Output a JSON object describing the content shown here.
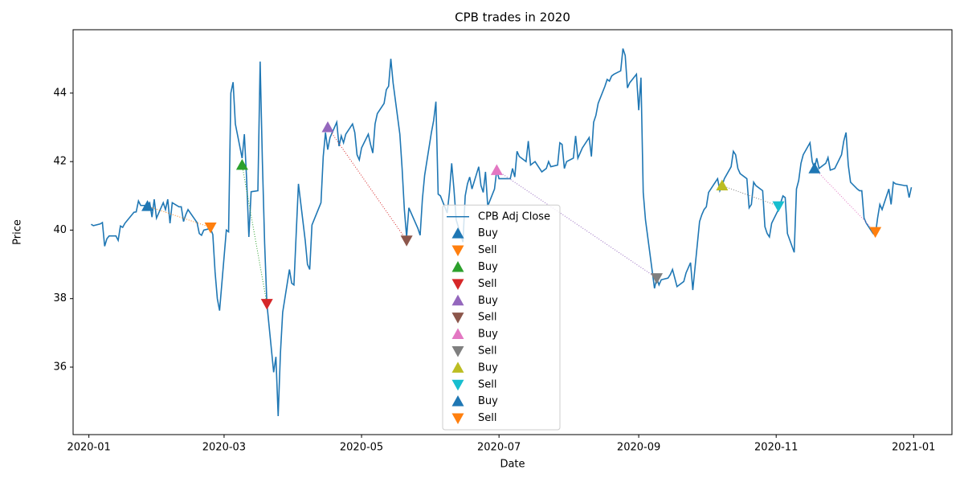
{
  "chart_data": {
    "type": "line",
    "title": "CPB trades in 2020",
    "xlabel": "Date",
    "ylabel": "Price",
    "xlim": [
      "2019-12-25",
      "2021-01-18"
    ],
    "xticks": [
      {
        "value": "2020-01-01",
        "label": "2020-01"
      },
      {
        "value": "2020-03-01",
        "label": "2020-03"
      },
      {
        "value": "2020-05-01",
        "label": "2020-05"
      },
      {
        "value": "2020-07-01",
        "label": "2020-07"
      },
      {
        "value": "2020-09-01",
        "label": "2020-09"
      },
      {
        "value": "2020-11-01",
        "label": "2020-11"
      },
      {
        "value": "2021-01-01",
        "label": "2021-01"
      }
    ],
    "ylim": [
      34.03,
      45.85
    ],
    "yticks": [
      36,
      38,
      40,
      42,
      44
    ],
    "grid": false,
    "legend": "lower center",
    "connector_colors": [
      "#ff7f0e",
      "#2ca02c",
      "#d62728",
      "#9467bd",
      "#7f7f7f",
      "#e377c2"
    ],
    "series": [
      {
        "name": "CPB Adj Close",
        "color": "#1f77b4",
        "marker": "line",
        "x": [
          "2020-01-02",
          "2020-01-03",
          "2020-01-06",
          "2020-01-07",
          "2020-01-08",
          "2020-01-09",
          "2020-01-10",
          "2020-01-13",
          "2020-01-14",
          "2020-01-15",
          "2020-01-16",
          "2020-01-17",
          "2020-01-21",
          "2020-01-22",
          "2020-01-23",
          "2020-01-24",
          "2020-01-27",
          "2020-01-28",
          "2020-01-29",
          "2020-01-30",
          "2020-01-31",
          "2020-02-03",
          "2020-02-04",
          "2020-02-05",
          "2020-02-06",
          "2020-02-07",
          "2020-02-10",
          "2020-02-11",
          "2020-02-12",
          "2020-02-13",
          "2020-02-14",
          "2020-02-18",
          "2020-02-19",
          "2020-02-20",
          "2020-02-21",
          "2020-02-24",
          "2020-02-25",
          "2020-02-26",
          "2020-02-27",
          "2020-02-28",
          "2020-03-02",
          "2020-03-03",
          "2020-03-04",
          "2020-03-05",
          "2020-03-06",
          "2020-03-09",
          "2020-03-10",
          "2020-03-11",
          "2020-03-12",
          "2020-03-13",
          "2020-03-16",
          "2020-03-17",
          "2020-03-18",
          "2020-03-19",
          "2020-03-20",
          "2020-03-23",
          "2020-03-24",
          "2020-03-25",
          "2020-03-26",
          "2020-03-27",
          "2020-03-30",
          "2020-03-31",
          "2020-04-01",
          "2020-04-02",
          "2020-04-03",
          "2020-04-06",
          "2020-04-07",
          "2020-04-08",
          "2020-04-09",
          "2020-04-13",
          "2020-04-14",
          "2020-04-15",
          "2020-04-16",
          "2020-04-17",
          "2020-04-20",
          "2020-04-21",
          "2020-04-22",
          "2020-04-23",
          "2020-04-24",
          "2020-04-27",
          "2020-04-28",
          "2020-04-29",
          "2020-04-30",
          "2020-05-01",
          "2020-05-04",
          "2020-05-05",
          "2020-05-06",
          "2020-05-07",
          "2020-05-08",
          "2020-05-11",
          "2020-05-12",
          "2020-05-13",
          "2020-05-14",
          "2020-05-15",
          "2020-05-18",
          "2020-05-19",
          "2020-05-20",
          "2020-05-21",
          "2020-05-22",
          "2020-05-26",
          "2020-05-27",
          "2020-05-28",
          "2020-05-29",
          "2020-06-01",
          "2020-06-02",
          "2020-06-03",
          "2020-06-04",
          "2020-06-05",
          "2020-06-08",
          "2020-06-09",
          "2020-06-10",
          "2020-06-11",
          "2020-06-12",
          "2020-06-15",
          "2020-06-16",
          "2020-06-17",
          "2020-06-18",
          "2020-06-19",
          "2020-06-22",
          "2020-06-23",
          "2020-06-24",
          "2020-06-25",
          "2020-06-26",
          "2020-06-29",
          "2020-06-30",
          "2020-07-01",
          "2020-07-02",
          "2020-07-06",
          "2020-07-07",
          "2020-07-08",
          "2020-07-09",
          "2020-07-10",
          "2020-07-13",
          "2020-07-14",
          "2020-07-15",
          "2020-07-16",
          "2020-07-17",
          "2020-07-20",
          "2020-07-21",
          "2020-07-22",
          "2020-07-23",
          "2020-07-24",
          "2020-07-27",
          "2020-07-28",
          "2020-07-29",
          "2020-07-30",
          "2020-07-31",
          "2020-08-03",
          "2020-08-04",
          "2020-08-05",
          "2020-08-06",
          "2020-08-07",
          "2020-08-10",
          "2020-08-11",
          "2020-08-12",
          "2020-08-13",
          "2020-08-14",
          "2020-08-17",
          "2020-08-18",
          "2020-08-19",
          "2020-08-20",
          "2020-08-21",
          "2020-08-24",
          "2020-08-25",
          "2020-08-26",
          "2020-08-27",
          "2020-08-28",
          "2020-08-31",
          "2020-09-01",
          "2020-09-02",
          "2020-09-03",
          "2020-09-04",
          "2020-09-08",
          "2020-09-09",
          "2020-09-10",
          "2020-09-11",
          "2020-09-14",
          "2020-09-15",
          "2020-09-16",
          "2020-09-17",
          "2020-09-18",
          "2020-09-21",
          "2020-09-22",
          "2020-09-23",
          "2020-09-24",
          "2020-09-25",
          "2020-09-28",
          "2020-09-29",
          "2020-09-30",
          "2020-10-01",
          "2020-10-02",
          "2020-10-05",
          "2020-10-06",
          "2020-10-07",
          "2020-10-08",
          "2020-10-09",
          "2020-10-12",
          "2020-10-13",
          "2020-10-14",
          "2020-10-15",
          "2020-10-16",
          "2020-10-19",
          "2020-10-20",
          "2020-10-21",
          "2020-10-22",
          "2020-10-23",
          "2020-10-26",
          "2020-10-27",
          "2020-10-28",
          "2020-10-29",
          "2020-10-30",
          "2020-11-02",
          "2020-11-03",
          "2020-11-04",
          "2020-11-05",
          "2020-11-06",
          "2020-11-09",
          "2020-11-10",
          "2020-11-11",
          "2020-11-12",
          "2020-11-13",
          "2020-11-16",
          "2020-11-17",
          "2020-11-18",
          "2020-11-19",
          "2020-11-20",
          "2020-11-23",
          "2020-11-24",
          "2020-11-25",
          "2020-11-27",
          "2020-11-30",
          "2020-12-01",
          "2020-12-02",
          "2020-12-03",
          "2020-12-04",
          "2020-12-07",
          "2020-12-08",
          "2020-12-09",
          "2020-12-10",
          "2020-12-11",
          "2020-12-14",
          "2020-12-15",
          "2020-12-16",
          "2020-12-17",
          "2020-12-18",
          "2020-12-21",
          "2020-12-22",
          "2020-12-23",
          "2020-12-24",
          "2020-12-28",
          "2020-12-29",
          "2020-12-30",
          "2020-12-31"
        ],
        "values": [
          40.17,
          40.13,
          40.18,
          40.22,
          39.53,
          39.75,
          39.83,
          39.83,
          39.7,
          40.12,
          40.08,
          40.2,
          40.52,
          40.53,
          40.85,
          40.72,
          40.72,
          40.8,
          40.38,
          40.9,
          40.35,
          40.8,
          40.6,
          40.9,
          40.2,
          40.8,
          40.68,
          40.68,
          40.25,
          40.45,
          40.6,
          40.22,
          39.9,
          39.85,
          40.0,
          40.05,
          39.87,
          38.78,
          38.0,
          37.65,
          40.0,
          39.95,
          44.0,
          44.32,
          43.1,
          42.1,
          42.8,
          41.5,
          39.8,
          41.12,
          41.15,
          44.92,
          42.0,
          39.6,
          37.85,
          35.85,
          36.3,
          34.57,
          36.4,
          37.6,
          38.85,
          38.45,
          38.4,
          39.9,
          41.35,
          39.7,
          39.0,
          38.85,
          40.15,
          40.8,
          42.15,
          42.85,
          42.35,
          42.7,
          43.15,
          42.45,
          42.75,
          42.55,
          42.8,
          43.1,
          42.85,
          42.2,
          42.05,
          42.4,
          42.8,
          42.5,
          42.25,
          43.1,
          43.4,
          43.7,
          44.1,
          44.2,
          45.0,
          44.3,
          42.8,
          41.8,
          40.6,
          39.8,
          40.65,
          40.05,
          39.85,
          40.9,
          41.6,
          42.85,
          43.2,
          43.75,
          41.05,
          41.0,
          40.5,
          41.1,
          41.95,
          41.2,
          40.3,
          39.65,
          41.0,
          41.35,
          41.55,
          41.2,
          41.85,
          41.3,
          41.1,
          41.7,
          40.7,
          41.2,
          41.75,
          41.5,
          41.5,
          41.5,
          41.8,
          41.55,
          42.3,
          42.15,
          42.0,
          42.6,
          41.9,
          41.95,
          42.0,
          41.7,
          41.75,
          41.8,
          42.0,
          41.85,
          41.9,
          42.55,
          42.5,
          41.8,
          42.0,
          42.1,
          42.75,
          42.1,
          42.25,
          42.4,
          42.7,
          42.15,
          43.15,
          43.35,
          43.7,
          44.2,
          44.4,
          44.35,
          44.5,
          44.55,
          44.65,
          45.3,
          45.1,
          44.15,
          44.3,
          44.55,
          43.5,
          44.45,
          41.1,
          40.3,
          38.3,
          38.6,
          38.4,
          38.55,
          38.6,
          38.7,
          38.85,
          38.6,
          38.35,
          38.5,
          38.75,
          38.9,
          39.05,
          38.25,
          40.25,
          40.45,
          40.6,
          40.68,
          41.1,
          41.4,
          41.5,
          41.15,
          41.3,
          41.5,
          41.85,
          42.3,
          42.2,
          41.8,
          41.65,
          41.5,
          40.65,
          40.75,
          41.4,
          41.3,
          41.15,
          40.1,
          39.9,
          39.8,
          40.2,
          40.6,
          40.8,
          41.0,
          40.95,
          39.9,
          39.35,
          41.2,
          41.45,
          41.95,
          42.2,
          42.55,
          42.0,
          41.8,
          42.1,
          41.8,
          41.95,
          42.12,
          41.75,
          41.8,
          42.2,
          42.6,
          42.85,
          41.9,
          41.4,
          41.2,
          41.15,
          41.15,
          40.35,
          40.2,
          39.9,
          39.85,
          40.35,
          40.75,
          40.6,
          41.2,
          40.75,
          41.4,
          41.35,
          41.3,
          41.3,
          40.95,
          41.25
        ]
      },
      {
        "name": "Buy",
        "color": "#1f77b4",
        "marker": "up",
        "x": [
          "2020-01-27"
        ],
        "values": [
          40.7
        ]
      },
      {
        "name": "Sell",
        "color": "#ff7f0e",
        "marker": "down",
        "x": [
          "2020-02-24"
        ],
        "values": [
          40.08
        ]
      },
      {
        "name": "Buy",
        "color": "#2ca02c",
        "marker": "up",
        "x": [
          "2020-03-09"
        ],
        "values": [
          41.9
        ]
      },
      {
        "name": "Sell",
        "color": "#d62728",
        "marker": "down",
        "x": [
          "2020-03-20"
        ],
        "values": [
          37.85
        ]
      },
      {
        "name": "Buy",
        "color": "#9467bd",
        "marker": "up",
        "x": [
          "2020-04-16"
        ],
        "values": [
          43.0
        ]
      },
      {
        "name": "Sell",
        "color": "#8c564b",
        "marker": "down",
        "x": [
          "2020-05-21"
        ],
        "values": [
          39.7
        ]
      },
      {
        "name": "Buy",
        "color": "#e377c2",
        "marker": "up",
        "x": [
          "2020-06-30"
        ],
        "values": [
          41.75
        ]
      },
      {
        "name": "Sell",
        "color": "#7f7f7f",
        "marker": "down",
        "x": [
          "2020-09-09"
        ],
        "values": [
          38.6
        ]
      },
      {
        "name": "Buy",
        "color": "#bcbd22",
        "marker": "up",
        "x": [
          "2020-10-08"
        ],
        "values": [
          41.3
        ]
      },
      {
        "name": "Sell",
        "color": "#17becf",
        "marker": "down",
        "x": [
          "2020-11-02"
        ],
        "values": [
          40.7
        ]
      },
      {
        "name": "Buy",
        "color": "#1f77b4",
        "marker": "up",
        "x": [
          "2020-11-18"
        ],
        "values": [
          41.8
        ]
      },
      {
        "name": "Sell",
        "color": "#ff7f0e",
        "marker": "down",
        "x": [
          "2020-12-15"
        ],
        "values": [
          39.95
        ]
      }
    ]
  }
}
